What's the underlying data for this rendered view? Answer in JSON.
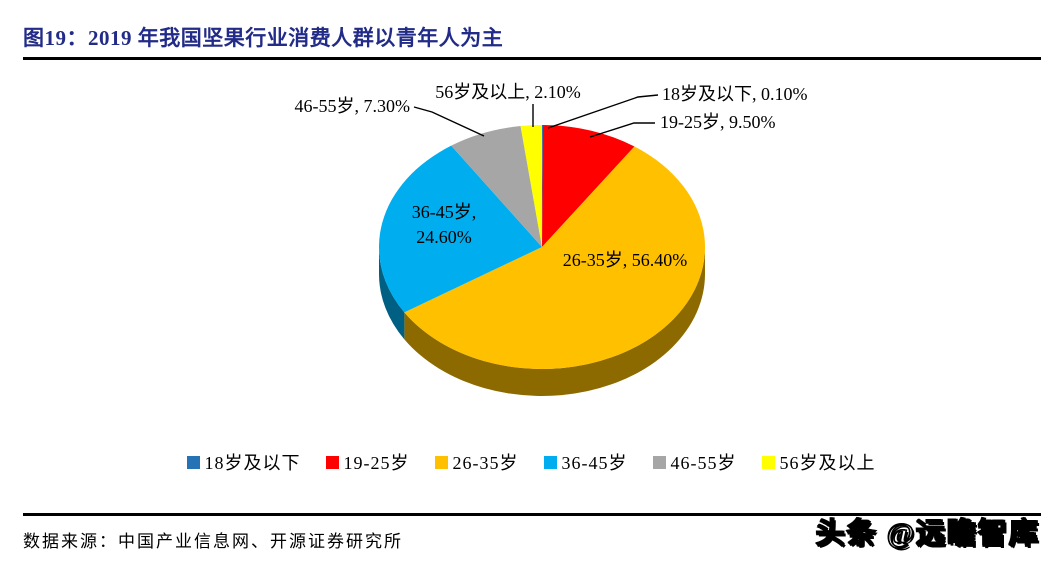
{
  "figure": {
    "title": "图19：2019 年我国坚果行业消费人群以青年人为主",
    "source": "数据来源：中国产业信息网、开源证券研究所",
    "watermark": "头条 @远瞻智库"
  },
  "chart_data": {
    "type": "pie",
    "style": "3d",
    "title": "2019 年我国坚果行业消费人群以青年人为主",
    "unit": "percent",
    "direction": "clockwise",
    "start_angle_deg": 0,
    "legend_position": "bottom",
    "slices": [
      {
        "label": "18岁及以下",
        "value": 0.1,
        "display": "18岁及以下, 0.10%",
        "color": "#2573B5"
      },
      {
        "label": "19-25岁",
        "value": 9.5,
        "display": "19-25岁, 9.50%",
        "color": "#FF0000"
      },
      {
        "label": "26-35岁",
        "value": 56.4,
        "display": "26-35岁, 56.40%",
        "color": "#FFC000"
      },
      {
        "label": "36-45岁",
        "value": 24.6,
        "display": "36-45岁, 24.60%",
        "color": "#00AEEF"
      },
      {
        "label": "46-55岁",
        "value": 7.3,
        "display": "46-55岁, 7.30%",
        "color": "#A6A6A6"
      },
      {
        "label": "56岁及以上",
        "value": 2.1,
        "display": "56岁及以上, 2.10%",
        "color": "#FFFF00"
      }
    ]
  }
}
